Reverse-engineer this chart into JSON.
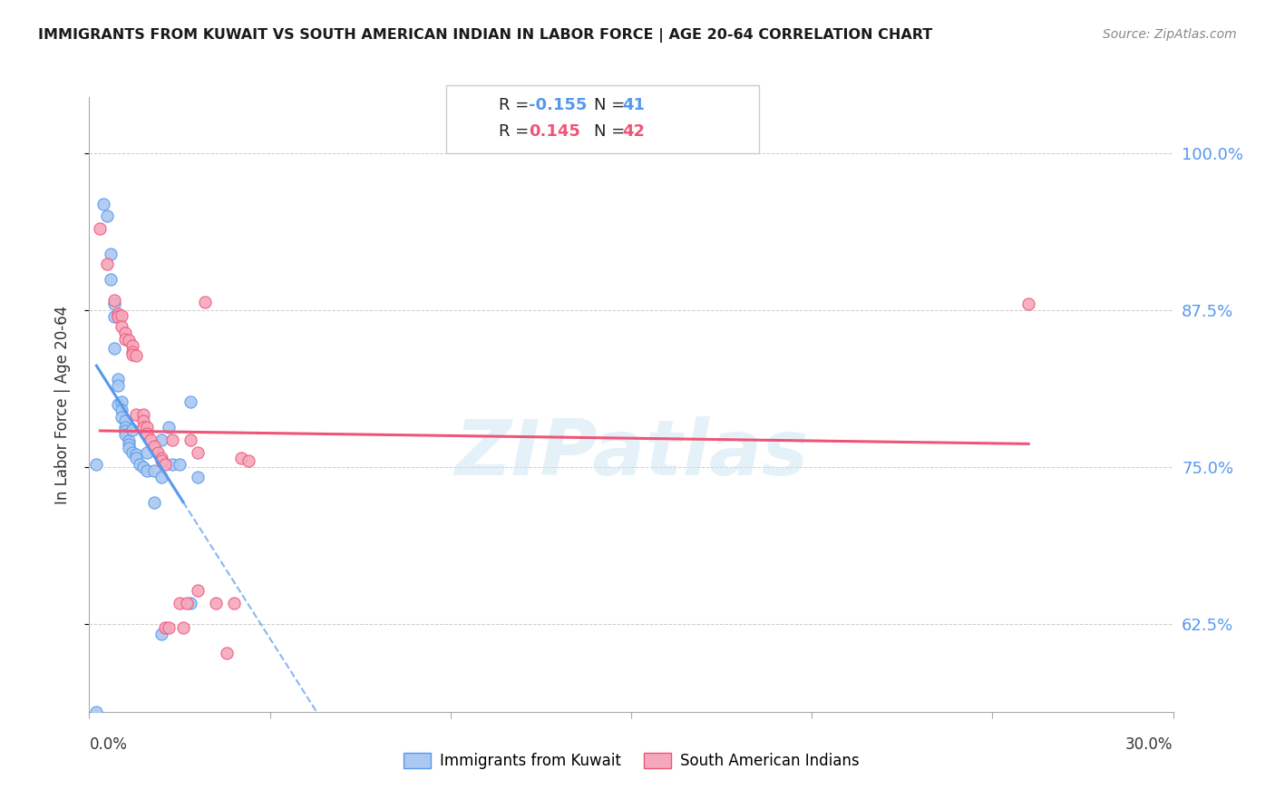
{
  "title": "IMMIGRANTS FROM KUWAIT VS SOUTH AMERICAN INDIAN IN LABOR FORCE | AGE 20-64 CORRELATION CHART",
  "source": "Source: ZipAtlas.com",
  "ylabel": "In Labor Force | Age 20-64",
  "yticks_labels": [
    "62.5%",
    "75.0%",
    "87.5%",
    "100.0%"
  ],
  "ytick_vals": [
    0.625,
    0.75,
    0.875,
    1.0
  ],
  "xlim": [
    0.0,
    0.3
  ],
  "ylim": [
    0.555,
    1.045
  ],
  "watermark": "ZIPatlas",
  "r1_val": "-0.155",
  "n1_val": "41",
  "r2_val": "0.145",
  "n2_val": "42",
  "scatter1_color": "#aac8f0",
  "scatter2_color": "#f5a8bc",
  "line1_color": "#5599ee",
  "line2_color": "#ee5577",
  "legend_label1": "Immigrants from Kuwait",
  "legend_label2": "South American Indians",
  "background_color": "#ffffff",
  "grid_color": "#cccccc",
  "kuwait_x": [
    0.002,
    0.004,
    0.005,
    0.006,
    0.006,
    0.007,
    0.007,
    0.007,
    0.008,
    0.008,
    0.008,
    0.009,
    0.009,
    0.009,
    0.01,
    0.01,
    0.01,
    0.01,
    0.011,
    0.011,
    0.011,
    0.012,
    0.012,
    0.013,
    0.013,
    0.014,
    0.015,
    0.016,
    0.016,
    0.018,
    0.018,
    0.02,
    0.02,
    0.02,
    0.022,
    0.023,
    0.025,
    0.028,
    0.028,
    0.03,
    0.002
  ],
  "kuwait_y": [
    0.555,
    0.96,
    0.95,
    0.92,
    0.9,
    0.88,
    0.87,
    0.845,
    0.82,
    0.815,
    0.8,
    0.802,
    0.796,
    0.79,
    0.787,
    0.782,
    0.779,
    0.776,
    0.771,
    0.768,
    0.765,
    0.762,
    0.78,
    0.76,
    0.757,
    0.752,
    0.75,
    0.747,
    0.762,
    0.747,
    0.722,
    0.772,
    0.742,
    0.617,
    0.782,
    0.752,
    0.752,
    0.642,
    0.802,
    0.742,
    0.752
  ],
  "sai_x": [
    0.003,
    0.005,
    0.007,
    0.008,
    0.008,
    0.009,
    0.009,
    0.01,
    0.01,
    0.011,
    0.012,
    0.012,
    0.012,
    0.013,
    0.013,
    0.015,
    0.015,
    0.015,
    0.016,
    0.016,
    0.017,
    0.018,
    0.019,
    0.02,
    0.02,
    0.021,
    0.021,
    0.022,
    0.023,
    0.025,
    0.026,
    0.027,
    0.028,
    0.03,
    0.03,
    0.032,
    0.035,
    0.038,
    0.04,
    0.042,
    0.044,
    0.26
  ],
  "sai_y": [
    0.94,
    0.912,
    0.883,
    0.872,
    0.87,
    0.871,
    0.862,
    0.857,
    0.852,
    0.851,
    0.847,
    0.842,
    0.84,
    0.839,
    0.792,
    0.792,
    0.787,
    0.782,
    0.782,
    0.777,
    0.772,
    0.767,
    0.762,
    0.757,
    0.755,
    0.752,
    0.622,
    0.622,
    0.772,
    0.642,
    0.622,
    0.642,
    0.772,
    0.762,
    0.652,
    0.882,
    0.642,
    0.602,
    0.642,
    0.757,
    0.755,
    0.88
  ]
}
